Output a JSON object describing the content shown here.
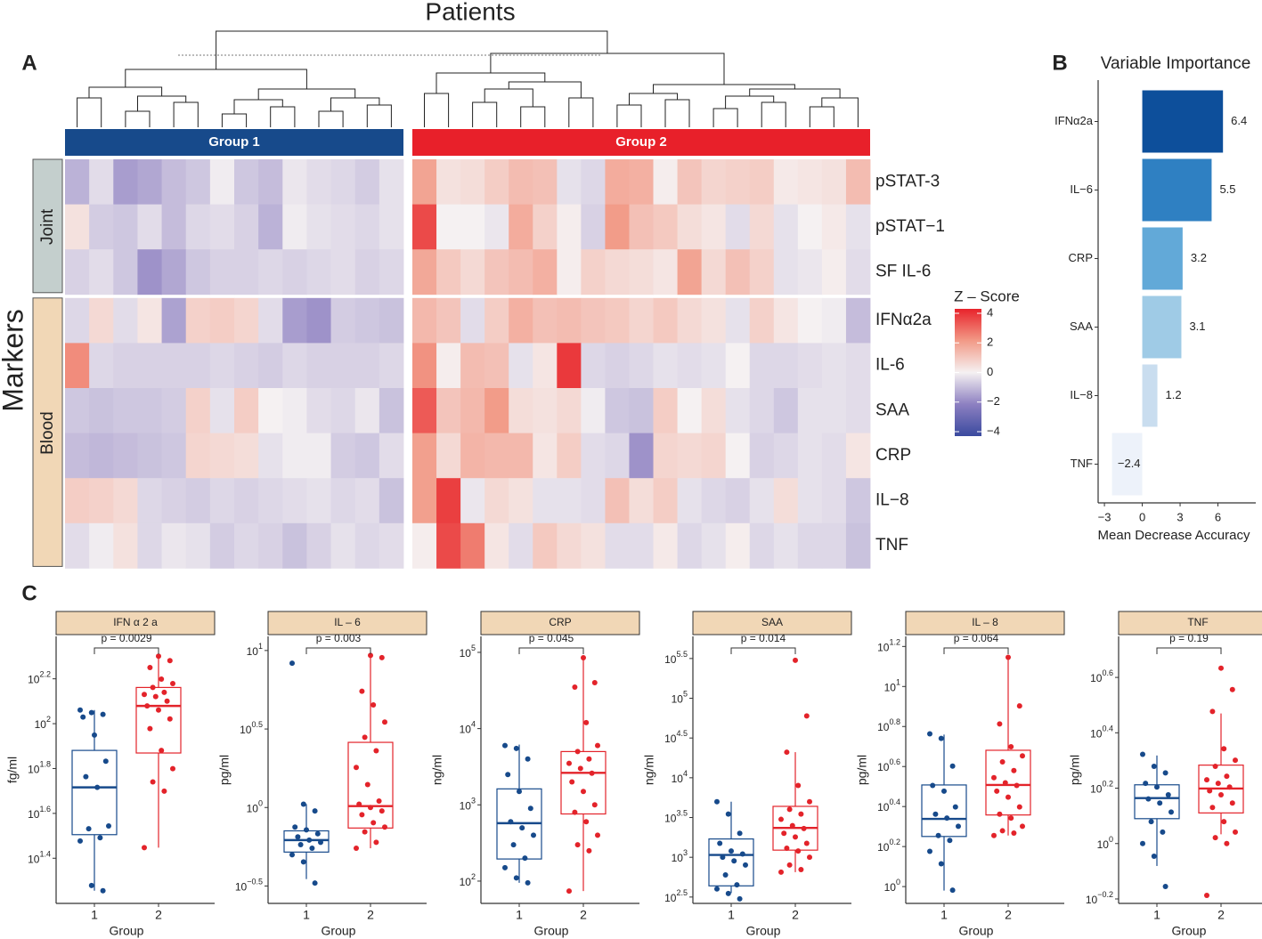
{
  "panel_labels": [
    "A",
    "B",
    "C"
  ],
  "chart_data": [
    {
      "type": "heatmap",
      "title": "Patients",
      "ylabel": "Markers",
      "row_groups": [
        {
          "name": "Joint",
          "rows": [
            "pSTAT-3",
            "pSTAT−1",
            "SF IL-6"
          ]
        },
        {
          "name": "Blood",
          "rows": [
            "IFNα2a",
            "IL-6",
            "SAA",
            "CRP",
            "IL−8",
            "TNF"
          ]
        }
      ],
      "column_groups": [
        {
          "name": "Group 1",
          "color": "#174a8b",
          "values": [
            [
              -1.2,
              -0.4,
              -1.6,
              -1.4,
              -1.0,
              -0.8,
              -0.1,
              -0.8,
              -1.0,
              -0.2,
              -0.4,
              -0.5,
              -0.7,
              -0.3
            ],
            [
              0.4,
              -0.7,
              -0.8,
              -0.4,
              -1.0,
              -0.5,
              -0.4,
              -0.6,
              -1.2,
              -0.1,
              -0.3,
              -0.4,
              -0.5,
              -0.3
            ],
            [
              -0.6,
              -0.4,
              -0.8,
              -1.8,
              -1.4,
              -0.8,
              -0.6,
              -0.6,
              -0.5,
              -0.6,
              -0.5,
              -0.4,
              -0.6,
              -0.5
            ],
            [
              -0.5,
              0.6,
              -0.4,
              0.3,
              -1.5,
              0.8,
              0.9,
              0.7,
              -0.4,
              -1.6,
              -1.8,
              -0.7,
              -0.8,
              -0.9
            ],
            [
              2.4,
              -0.5,
              -0.6,
              -0.6,
              -0.6,
              -0.6,
              -0.5,
              -0.6,
              -0.7,
              -0.5,
              -0.6,
              -0.6,
              -0.6,
              -0.5
            ],
            [
              -0.8,
              -0.9,
              -0.8,
              -0.8,
              -0.7,
              0.8,
              -0.3,
              0.9,
              0.0,
              -0.1,
              -0.4,
              -0.5,
              -0.2,
              -0.9
            ],
            [
              -1.0,
              -1.1,
              -1.0,
              -0.9,
              -0.8,
              0.7,
              0.6,
              0.5,
              -0.3,
              -0.1,
              -0.1,
              -0.7,
              -0.8,
              -0.4
            ],
            [
              0.9,
              0.8,
              0.6,
              -0.5,
              -0.6,
              -0.7,
              -0.5,
              -0.6,
              -0.5,
              -0.4,
              -0.3,
              -0.5,
              -0.4,
              -0.9
            ],
            [
              -0.4,
              -0.1,
              0.4,
              -0.5,
              -0.2,
              -0.3,
              -0.7,
              -0.5,
              -0.6,
              -0.9,
              -0.6,
              -0.3,
              -0.5,
              -0.4
            ]
          ]
        },
        {
          "name": "Group 2",
          "color": "#e8202a",
          "values": [
            [
              1.9,
              0.4,
              0.5,
              0.9,
              1.3,
              1.2,
              -0.3,
              -0.5,
              1.7,
              1.6,
              0.1,
              1.1,
              0.7,
              0.8,
              0.9,
              0.2,
              0.3,
              0.4,
              1.3
            ],
            [
              3.6,
              0.0,
              0.0,
              -0.2,
              1.7,
              0.8,
              0.1,
              -0.6,
              2.1,
              1.2,
              1.0,
              0.5,
              0.3,
              -0.4,
              0.6,
              -0.3,
              0.0,
              0.2,
              -0.3
            ],
            [
              1.8,
              1.0,
              0.6,
              1.1,
              1.3,
              1.6,
              0.1,
              0.8,
              0.6,
              0.5,
              0.3,
              1.9,
              0.6,
              1.2,
              0.8,
              -0.3,
              -0.2,
              0.1,
              -0.4
            ],
            [
              1.4,
              1.1,
              -0.4,
              0.9,
              1.6,
              1.2,
              1.3,
              1.1,
              1.0,
              0.7,
              1.0,
              0.6,
              0.4,
              -0.3,
              0.8,
              0.3,
              0.0,
              -0.1,
              -1.0
            ],
            [
              2.3,
              0.1,
              1.3,
              1.2,
              -0.3,
              0.3,
              3.9,
              -0.5,
              -0.6,
              -0.5,
              -0.3,
              -0.4,
              -0.3,
              0.0,
              -0.5,
              -0.5,
              -0.4,
              -0.3,
              -0.4
            ],
            [
              3.3,
              1.1,
              1.4,
              2.1,
              0.5,
              0.4,
              0.6,
              -0.1,
              -0.8,
              -0.9,
              0.9,
              0.0,
              0.5,
              -0.3,
              -0.5,
              -0.8,
              -0.3,
              -0.3,
              -0.4
            ],
            [
              2.0,
              0.6,
              1.5,
              1.4,
              1.4,
              0.3,
              0.9,
              -0.4,
              -0.5,
              -1.8,
              0.7,
              0.6,
              0.7,
              0.0,
              -0.6,
              -0.5,
              -0.3,
              -0.4,
              0.3
            ],
            [
              2.0,
              3.8,
              -0.2,
              0.6,
              0.4,
              -0.3,
              -0.3,
              -0.4,
              1.2,
              0.5,
              0.9,
              -0.3,
              -0.5,
              -0.6,
              -0.3,
              0.5,
              -0.3,
              -0.4,
              -0.8
            ],
            [
              0.1,
              3.6,
              2.7,
              0.3,
              -0.4,
              1.0,
              0.6,
              0.4,
              -0.4,
              -0.4,
              0.2,
              -0.5,
              -0.3,
              0.1,
              -0.5,
              -0.3,
              -0.5,
              -0.5,
              -0.9
            ]
          ]
        }
      ],
      "colorbar": {
        "title": "Z – Score",
        "lim": [
          -4.3,
          4.3
        ],
        "ticks": [
          4,
          2,
          0,
          {
            "value": -2,
            "label": "−2"
          },
          {
            "value": -4,
            "label": "−4"
          }
        ],
        "colorscale": [
          "#3a4a9f",
          "#8d80c1",
          "#f5f1f2",
          "#f29a87",
          "#e8232b"
        ]
      }
    },
    {
      "type": "bar",
      "orientation": "horizontal",
      "title": "Variable Importance",
      "xlabel": "Mean Decrease Accuracy",
      "categories": [
        "IFNα2a",
        "IL−6",
        "CRP",
        "SAA",
        "IL−8",
        "TNF"
      ],
      "values": [
        6.4,
        5.5,
        3.2,
        3.1,
        1.2,
        -2.4
      ],
      "value_labels": [
        "6.4",
        "5.5",
        "3.2",
        "3.1",
        "1.2",
        "−2.4"
      ],
      "colors": [
        "#0d4f9b",
        "#2f80c2",
        "#62a9d8",
        "#9fcbe6",
        "#c9ddef",
        "#edf2fa"
      ],
      "xlim": [
        -3.5,
        9
      ],
      "xticks": [
        {
          "value": -3,
          "label": "−3"
        },
        0,
        3,
        6
      ]
    },
    {
      "type": "box",
      "title": "IFN α 2 a",
      "annotation": "p = 0.0029",
      "ylabel": "fg/ml",
      "xlabel": "Group",
      "log_scale": true,
      "ylim": [
        15.8,
        245
      ],
      "yticks": [
        {
          "value": 25.12,
          "label": "10",
          "exponent": "1.4"
        },
        {
          "value": 39.81,
          "label": "10",
          "exponent": "1.6"
        },
        {
          "value": 63.1,
          "label": "10",
          "exponent": "1.8"
        },
        {
          "value": 100,
          "label": "10",
          "exponent": "2"
        },
        {
          "value": 158.5,
          "label": "10",
          "exponent": "2.2"
        }
      ],
      "groups": [
        {
          "name": "1",
          "color": "#174a8b",
          "box": [
            18,
            32,
            52,
            76,
            115
          ],
          "points": [
            115,
            112,
            110,
            107,
            89,
            68,
            58,
            52,
            35,
            34,
            31,
            30,
            19,
            18
          ]
        },
        {
          "name": "2",
          "color": "#e3232a",
          "box": [
            28,
            74,
            120,
            145,
            200
          ],
          "points": [
            200,
            191,
            178,
            158,
            151,
            145,
            138,
            135,
            132,
            126,
            120,
            115,
            105,
            95,
            76,
            63,
            55,
            50,
            28
          ]
        }
      ]
    },
    {
      "type": "box",
      "title": "IL – 6",
      "annotation": "p = 0.003",
      "ylabel": "pg/ml",
      "xlabel": "Group",
      "log_scale": true,
      "ylim": [
        0.245,
        12.3
      ],
      "yticks": [
        {
          "value": 0.3162,
          "label": "10",
          "exponent": "−0.5"
        },
        {
          "value": 1,
          "label": "10",
          "exponent": "0"
        },
        {
          "value": 3.162,
          "label": "10",
          "exponent": "0.5"
        },
        {
          "value": 10,
          "label": "10",
          "exponent": "1"
        }
      ],
      "groups": [
        {
          "name": "1",
          "color": "#174a8b",
          "box": [
            0.35,
            0.52,
            0.62,
            0.71,
            1.05
          ],
          "points": [
            8.3,
            1.05,
            0.95,
            0.75,
            0.72,
            0.68,
            0.65,
            0.62,
            0.6,
            0.58,
            0.55,
            0.5,
            0.45,
            0.33
          ]
        },
        {
          "name": "2",
          "color": "#e3232a",
          "box": [
            0.55,
            0.74,
            1.02,
            2.6,
            9.3
          ],
          "points": [
            9.3,
            9.0,
            5.5,
            4.5,
            3.5,
            2.8,
            2.3,
            1.8,
            1.4,
            1.1,
            1.05,
            1.0,
            0.95,
            0.9,
            0.8,
            0.75,
            0.7,
            0.6,
            0.55
          ]
        }
      ]
    },
    {
      "type": "box",
      "title": "CRP",
      "annotation": "p = 0.045",
      "ylabel": "ng/ml",
      "xlabel": "Group",
      "log_scale": true,
      "ylim": [
        51,
        162000
      ],
      "yticks": [
        {
          "value": 100,
          "label": "10",
          "exponent": "2"
        },
        {
          "value": 1000,
          "label": "10",
          "exponent": "3"
        },
        {
          "value": 10000,
          "label": "10",
          "exponent": "4"
        },
        {
          "value": 100000,
          "label": "10",
          "exponent": "5"
        }
      ],
      "groups": [
        {
          "name": "1",
          "color": "#174a8b",
          "box": [
            95,
            195,
            575,
            1620,
            6170
          ],
          "points": [
            6000,
            5500,
            4000,
            2500,
            1500,
            900,
            600,
            500,
            400,
            300,
            200,
            150,
            110,
            95
          ]
        },
        {
          "name": "2",
          "color": "#e3232a",
          "box": [
            74,
            760,
            2630,
            5000,
            85000
          ],
          "points": [
            85000,
            40000,
            35000,
            12000,
            6000,
            5000,
            4000,
            3500,
            3000,
            2600,
            2000,
            1500,
            1000,
            800,
            600,
            400,
            300,
            250,
            74
          ]
        }
      ]
    },
    {
      "type": "box",
      "title": "SAA",
      "annotation": "p = 0.014",
      "ylabel": "ng/ml",
      "xlabel": "Group",
      "log_scale": true,
      "ylim": [
        263,
        600000
      ],
      "yticks": [
        {
          "value": 316.2,
          "label": "10",
          "exponent": "2.5"
        },
        {
          "value": 1000,
          "label": "10",
          "exponent": "3"
        },
        {
          "value": 3162,
          "label": "10",
          "exponent": "3.5"
        },
        {
          "value": 10000,
          "label": "10",
          "exponent": "4"
        },
        {
          "value": 31623,
          "label": "10",
          "exponent": "4.5"
        },
        {
          "value": 100000,
          "label": "10",
          "exponent": "5"
        },
        {
          "value": 316228,
          "label": "10",
          "exponent": "5.5"
        }
      ],
      "groups": [
        {
          "name": "1",
          "color": "#174a8b",
          "box": [
            355,
            437,
            1070,
            1700,
            5000
          ],
          "points": [
            5000,
            3500,
            2000,
            1500,
            1200,
            1100,
            1000,
            900,
            800,
            600,
            450,
            400,
            350,
            300
          ]
        },
        {
          "name": "2",
          "color": "#e3232a",
          "box": [
            650,
            1230,
            2340,
            4370,
            21000
          ],
          "points": [
            300000,
            60000,
            21000,
            8000,
            5000,
            4000,
            3500,
            3000,
            2500,
            2300,
            2000,
            1800,
            1500,
            1300,
            1200,
            1000,
            800,
            700,
            650
          ]
        }
      ]
    },
    {
      "type": "box",
      "title": "IL – 8",
      "annotation": "p = 0.064",
      "ylabel": "pg/ml",
      "xlabel": "Group",
      "log_scale": true,
      "ylim": [
        0.824,
        17.8
      ],
      "yticks": [
        {
          "value": 1,
          "label": "10",
          "exponent": "0"
        },
        {
          "value": 1.585,
          "label": "10",
          "exponent": "0.2"
        },
        {
          "value": 2.512,
          "label": "10",
          "exponent": "0.4"
        },
        {
          "value": 3.981,
          "label": "10",
          "exponent": "0.6"
        },
        {
          "value": 6.31,
          "label": "10",
          "exponent": "0.8"
        },
        {
          "value": 10,
          "label": "10",
          "exponent": "1"
        },
        {
          "value": 15.85,
          "label": "10",
          "exponent": "1.2"
        }
      ],
      "groups": [
        {
          "name": "1",
          "color": "#174a8b",
          "box": [
            0.955,
            1.78,
            2.18,
            3.22,
            5.75
          ],
          "points": [
            5.8,
            5.5,
            4.0,
            3.2,
            3.0,
            2.5,
            2.3,
            2.2,
            2.0,
            1.8,
            1.7,
            1.5,
            1.3,
            0.96
          ]
        },
        {
          "name": "2",
          "color": "#e3232a",
          "box": [
            1.8,
            2.28,
            3.22,
            4.8,
            14
          ],
          "points": [
            14,
            8.0,
            6.5,
            5.0,
            4.5,
            4.2,
            3.8,
            3.5,
            3.3,
            3.2,
            3.0,
            2.8,
            2.5,
            2.3,
            2.2,
            2.0,
            1.9,
            1.85,
            1.8
          ]
        }
      ]
    },
    {
      "type": "box",
      "title": "TNF",
      "annotation": "p = 0.19",
      "ylabel": "pg/ml",
      "xlabel": "Group",
      "log_scale": true,
      "ylim": [
        0.608,
        5.6
      ],
      "yticks": [
        {
          "value": 0.631,
          "label": "10",
          "exponent": "−0.2"
        },
        {
          "value": 1,
          "label": "10",
          "exponent": "0"
        },
        {
          "value": 1.585,
          "label": "10",
          "exponent": "0.2"
        },
        {
          "value": 2.512,
          "label": "10",
          "exponent": "0.4"
        },
        {
          "value": 3.981,
          "label": "10",
          "exponent": "0.6"
        }
      ],
      "groups": [
        {
          "name": "1",
          "color": "#174a8b",
          "box": [
            0.83,
            1.23,
            1.46,
            1.63,
            2.08
          ],
          "points": [
            2.1,
            1.9,
            1.8,
            1.65,
            1.6,
            1.5,
            1.45,
            1.4,
            1.3,
            1.2,
            1.1,
            1.0,
            0.9,
            0.7
          ]
        },
        {
          "name": "2",
          "color": "#e3232a",
          "box": [
            1.08,
            1.29,
            1.58,
            1.92,
            2.95
          ],
          "points": [
            4.3,
            3.6,
            3.0,
            2.2,
            2.0,
            1.9,
            1.75,
            1.7,
            1.65,
            1.6,
            1.55,
            1.5,
            1.4,
            1.35,
            1.2,
            1.1,
            1.05,
            1.0,
            0.65
          ]
        }
      ]
    }
  ]
}
